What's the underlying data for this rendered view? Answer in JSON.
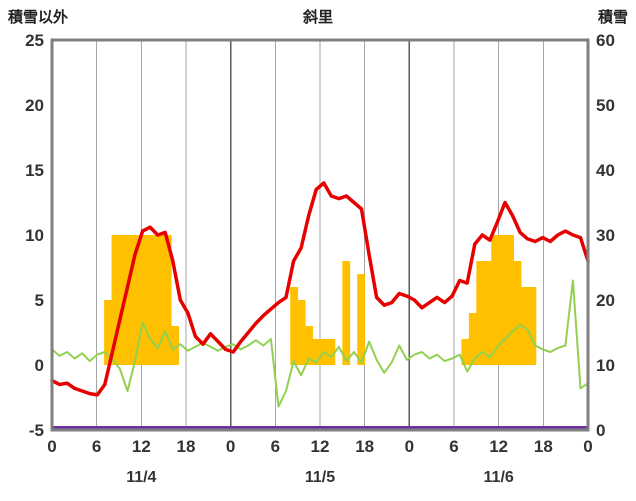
{
  "header": {
    "left_label": "積雪以外",
    "title": "斜里",
    "right_label": "積雪"
  },
  "chart_data": {
    "type": "combo",
    "title": "斜里",
    "left_axis": {
      "label": "積雪以外",
      "min": -5,
      "max": 25,
      "ticks": [
        25,
        20,
        15,
        10,
        5,
        0,
        -5
      ]
    },
    "right_axis": {
      "label": "積雪",
      "min": 0,
      "max": 60,
      "ticks": [
        60,
        50,
        40,
        30,
        20,
        10,
        0
      ]
    },
    "x_axis": {
      "total_hours": 72,
      "tick_hours": [
        0,
        6,
        12,
        18,
        24,
        30,
        36,
        42,
        48,
        54,
        60,
        66,
        72
      ],
      "tick_labels": [
        "0",
        "6",
        "12",
        "18",
        "0",
        "6",
        "12",
        "18",
        "0",
        "6",
        "12",
        "18",
        "0"
      ],
      "day_boundary_hours": [
        24,
        48
      ],
      "day_labels": [
        "11/4",
        "11/5",
        "11/6"
      ]
    },
    "grid": {
      "vertical": true,
      "horizontal": false
    },
    "legend": "none",
    "series": [
      {
        "name": "orange-bars",
        "type": "bar",
        "axis": "left",
        "color": "#FFC000",
        "points": [
          {
            "hour": 7,
            "value": 5
          },
          {
            "hour": 8,
            "value": 10
          },
          {
            "hour": 9,
            "value": 10
          },
          {
            "hour": 10,
            "value": 10
          },
          {
            "hour": 11,
            "value": 10
          },
          {
            "hour": 12,
            "value": 10
          },
          {
            "hour": 13,
            "value": 10
          },
          {
            "hour": 14,
            "value": 10
          },
          {
            "hour": 15,
            "value": 10
          },
          {
            "hour": 16,
            "value": 3
          },
          {
            "hour": 32,
            "value": 6
          },
          {
            "hour": 33,
            "value": 5
          },
          {
            "hour": 34,
            "value": 3
          },
          {
            "hour": 35,
            "value": 2
          },
          {
            "hour": 36,
            "value": 2
          },
          {
            "hour": 37,
            "value": 2
          },
          {
            "hour": 39,
            "value": 8
          },
          {
            "hour": 41,
            "value": 7
          },
          {
            "hour": 55,
            "value": 2
          },
          {
            "hour": 56,
            "value": 4
          },
          {
            "hour": 57,
            "value": 8
          },
          {
            "hour": 58,
            "value": 8
          },
          {
            "hour": 59,
            "value": 10
          },
          {
            "hour": 60,
            "value": 10
          },
          {
            "hour": 61,
            "value": 10
          },
          {
            "hour": 62,
            "value": 8
          },
          {
            "hour": 63,
            "value": 6
          },
          {
            "hour": 64,
            "value": 6
          }
        ]
      },
      {
        "name": "green-line",
        "type": "line",
        "axis": "left",
        "color": "#92D050",
        "stroke_width": 2,
        "values": [
          1.2,
          0.7,
          1.0,
          0.5,
          0.9,
          0.3,
          0.8,
          1.0,
          0.4,
          -0.3,
          -2.0,
          0.3,
          3.3,
          2.0,
          1.3,
          2.6,
          1.2,
          1.6,
          1.1,
          1.4,
          1.7,
          1.4,
          1.1,
          1.4,
          1.6,
          1.2,
          1.5,
          1.9,
          1.5,
          2.0,
          -3.2,
          -2.0,
          0.3,
          -0.8,
          0.5,
          0.2,
          1.0,
          0.6,
          1.4,
          0.3,
          1.0,
          0.2,
          1.8,
          0.4,
          -0.6,
          0.2,
          1.5,
          0.4,
          0.8,
          1.0,
          0.5,
          0.8,
          0.3,
          0.5,
          0.8,
          -0.5,
          0.5,
          1.0,
          0.6,
          1.4,
          2.0,
          2.6,
          3.1,
          2.7,
          1.5,
          1.2,
          1.0,
          1.3,
          1.5,
          6.5,
          -1.8,
          -1.4
        ]
      },
      {
        "name": "red-line",
        "type": "line",
        "axis": "left",
        "color": "#E60000",
        "stroke_width": 3.5,
        "values": [
          -1.2,
          -1.5,
          -1.4,
          -1.8,
          -2.0,
          -2.2,
          -2.3,
          -1.5,
          1.0,
          3.5,
          6.0,
          8.5,
          10.3,
          10.6,
          10.0,
          10.2,
          8.0,
          5.0,
          4.0,
          2.2,
          1.6,
          2.4,
          1.8,
          1.2,
          1.0,
          1.8,
          2.5,
          3.2,
          3.8,
          4.3,
          4.8,
          5.2,
          8.0,
          9.0,
          11.5,
          13.5,
          14.0,
          13.0,
          12.8,
          13.0,
          12.5,
          12.0,
          8.5,
          5.2,
          4.6,
          4.8,
          5.5,
          5.3,
          5.0,
          4.4,
          4.8,
          5.2,
          4.8,
          5.3,
          6.5,
          6.3,
          9.3,
          10.0,
          9.6,
          11.0,
          12.5,
          11.5,
          10.2,
          9.7,
          9.5,
          9.8,
          9.5,
          10.0,
          10.3,
          10.0,
          9.8,
          8.0
        ]
      },
      {
        "name": "purple-line",
        "type": "line",
        "axis": "right",
        "color": "#7030A0",
        "stroke_width": 3,
        "values_constant": 0
      }
    ]
  },
  "colors": {
    "frame": "#7f7f7f",
    "grid_minor": "#a6a6a6",
    "grid_major": "#595959",
    "text": "#222222",
    "tick_text": "#333333",
    "background": "#ffffff"
  }
}
